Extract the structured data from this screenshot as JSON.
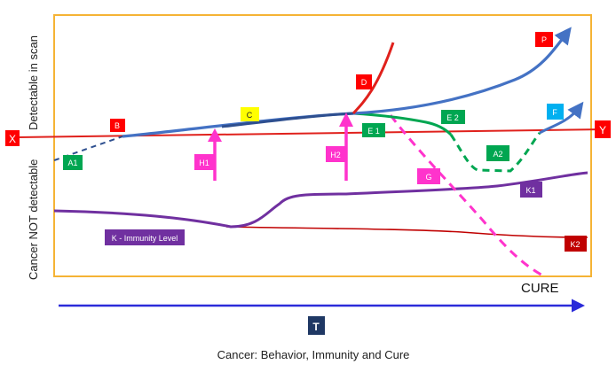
{
  "axis_labels": {
    "left_top": "Detectable in scan",
    "left_bottom": "Cancer NOT detectable",
    "x_axis": "T"
  },
  "threshold_labels": {
    "left": "X",
    "right": "Y"
  },
  "labels": {
    "A1": "A1",
    "A2": "A2",
    "B": "B",
    "C": "C",
    "D": "D",
    "E1": "E 1",
    "E2": "E 2",
    "F": "F",
    "G": "G",
    "H1": "H1",
    "H2": "H2",
    "K": "K - Immunity Level",
    "K1": "K1",
    "K2": "K2",
    "P": "P"
  },
  "cure_label": "CURE",
  "caption": "Cancer: Behavior, Immunity and Cure",
  "colors": {
    "frame": "#f5b335",
    "threshold": "#e0211c",
    "growth": "#4472c4",
    "growth_dark": "#2e4f8f",
    "immune": "#7030a0",
    "immune_low": "#c00000",
    "green": "#00a651",
    "magenta": "#ff33cc",
    "time_axis": "#2b2bd9",
    "yellow": "#ffff00",
    "cyan": "#00b0f0",
    "navy": "#1f3864",
    "red_box": "#ff0000"
  }
}
